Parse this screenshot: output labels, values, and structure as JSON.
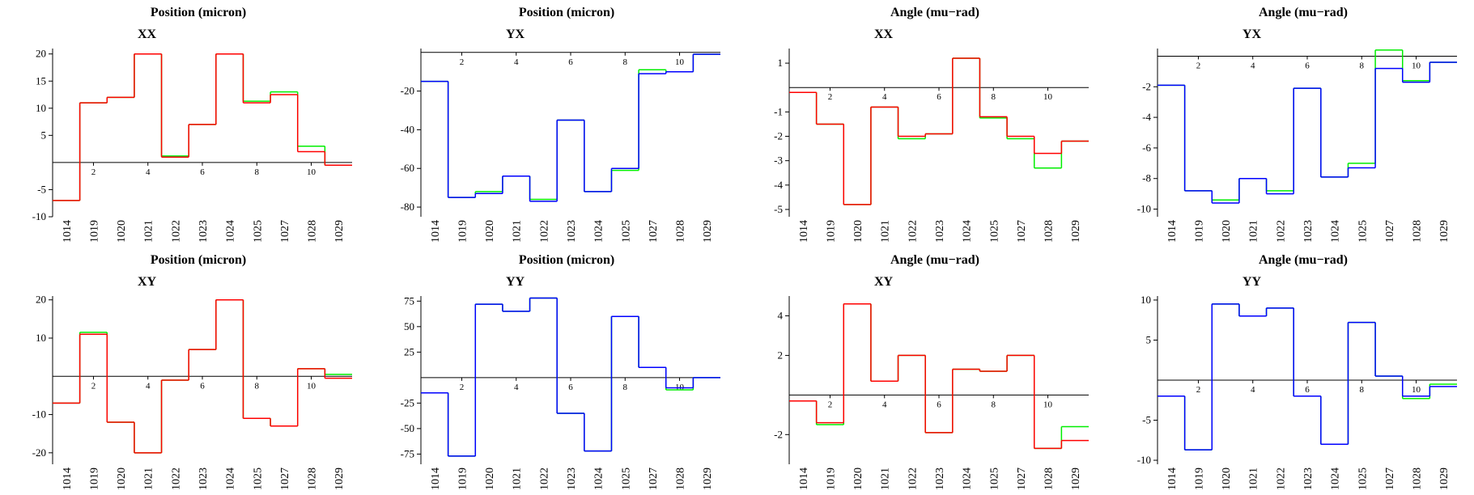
{
  "chart_data": [
    {
      "type": "step",
      "title": "Position (micron)",
      "subtitle": "XX",
      "categories": [
        "1014",
        "1019",
        "1020",
        "1021",
        "1022",
        "1023",
        "1024",
        "1025",
        "1027",
        "1028",
        "1029"
      ],
      "xlim": [
        0.5,
        11.5
      ],
      "xticks": [
        2,
        4,
        6,
        8,
        10
      ],
      "ylim": [
        -10,
        21
      ],
      "yticks": [
        -10,
        -5,
        5,
        10,
        15,
        20
      ],
      "series": [
        {
          "color": "#00ee00",
          "values": [
            -7,
            11,
            12,
            20,
            1.2,
            7,
            20,
            11.3,
            13,
            3,
            -0.5
          ]
        },
        {
          "color": "#ff0000",
          "values": [
            -7,
            11,
            12,
            20,
            1,
            7,
            20,
            11,
            12.5,
            2,
            -0.5
          ]
        }
      ]
    },
    {
      "type": "step",
      "title": "Position (micron)",
      "subtitle": "YX",
      "categories": [
        "1014",
        "1019",
        "1020",
        "1021",
        "1022",
        "1023",
        "1024",
        "1025",
        "1027",
        "1028",
        "1029"
      ],
      "xlim": [
        0.5,
        11.5
      ],
      "xticks": [
        2,
        4,
        6,
        8,
        10
      ],
      "ylim": [
        -85,
        2
      ],
      "yticks": [
        -20,
        -40,
        -60,
        -80
      ],
      "series": [
        {
          "color": "#00ee00",
          "values": [
            -15,
            -75,
            -72,
            -64,
            -76,
            -35,
            -72,
            -61,
            -9,
            -10,
            -1
          ]
        },
        {
          "color": "#0000ff",
          "values": [
            -15,
            -75,
            -73,
            -64,
            -77,
            -35,
            -72,
            -60,
            -11,
            -10,
            -1
          ]
        }
      ]
    },
    {
      "type": "step",
      "title": "Angle (mu−rad)",
      "subtitle": "XX",
      "categories": [
        "1014",
        "1019",
        "1020",
        "1021",
        "1022",
        "1023",
        "1024",
        "1025",
        "1027",
        "1028",
        "1029"
      ],
      "xlim": [
        0.5,
        11.5
      ],
      "xticks": [
        2,
        4,
        6,
        8,
        10
      ],
      "ylim": [
        -5.3,
        1.6
      ],
      "yticks": [
        1,
        -1,
        -2,
        -3,
        -4,
        -5
      ],
      "series": [
        {
          "color": "#00ee00",
          "values": [
            -0.2,
            -1.5,
            -4.8,
            -0.8,
            -2.1,
            -1.9,
            1.2,
            -1.25,
            -2.1,
            -3.3,
            -2.2
          ]
        },
        {
          "color": "#ff0000",
          "values": [
            -0.2,
            -1.5,
            -4.8,
            -0.8,
            -2,
            -1.9,
            1.2,
            -1.2,
            -2,
            -2.7,
            -2.2
          ]
        }
      ]
    },
    {
      "type": "step",
      "title": "Angle (mu−rad)",
      "subtitle": "YX",
      "categories": [
        "1014",
        "1019",
        "1020",
        "1021",
        "1022",
        "1023",
        "1024",
        "1025",
        "1027",
        "1028",
        "1029"
      ],
      "xlim": [
        0.5,
        11.5
      ],
      "xticks": [
        2,
        4,
        6,
        8,
        10
      ],
      "ylim": [
        -10.5,
        0.5
      ],
      "yticks": [
        -2,
        -4,
        -6,
        -8,
        -10
      ],
      "series": [
        {
          "color": "#00ee00",
          "values": [
            -1.9,
            -8.8,
            -9.4,
            -8,
            -8.8,
            -2.1,
            -7.9,
            -7,
            0.4,
            -1.6,
            -0.4
          ]
        },
        {
          "color": "#0000ff",
          "values": [
            -1.9,
            -8.8,
            -9.6,
            -8,
            -9,
            -2.1,
            -7.9,
            -7.3,
            -0.8,
            -1.7,
            -0.4
          ]
        }
      ]
    },
    {
      "type": "step",
      "title": "Position (micron)",
      "subtitle": "XY",
      "categories": [
        "1014",
        "1019",
        "1020",
        "1021",
        "1022",
        "1023",
        "1024",
        "1025",
        "1027",
        "1028",
        "1029"
      ],
      "xlim": [
        0.5,
        11.5
      ],
      "xticks": [
        2,
        4,
        6,
        8,
        10
      ],
      "ylim": [
        -23,
        21
      ],
      "yticks": [
        -20,
        -10,
        10,
        20
      ],
      "series": [
        {
          "color": "#00ee00",
          "values": [
            -7,
            11.5,
            -12,
            -20,
            -1,
            7,
            20,
            -11,
            -13,
            2,
            0.5
          ]
        },
        {
          "color": "#ff0000",
          "values": [
            -7,
            11,
            -12,
            -20,
            -1,
            7,
            20,
            -11,
            -13,
            2,
            -0.5
          ]
        }
      ]
    },
    {
      "type": "step",
      "title": "Position (micron)",
      "subtitle": "YY",
      "categories": [
        "1014",
        "1019",
        "1020",
        "1021",
        "1022",
        "1023",
        "1024",
        "1025",
        "1027",
        "1028",
        "1029"
      ],
      "xlim": [
        0.5,
        11.5
      ],
      "xticks": [
        2,
        4,
        6,
        8,
        10
      ],
      "ylim": [
        -85,
        80
      ],
      "yticks": [
        75,
        50,
        25,
        -25,
        -50,
        -75
      ],
      "series": [
        {
          "color": "#00ee00",
          "values": [
            -15,
            -77,
            72,
            65,
            78,
            -35,
            -72,
            60,
            10,
            -12,
            0
          ]
        },
        {
          "color": "#0000ff",
          "values": [
            -15,
            -77,
            72,
            65,
            78,
            -35,
            -72,
            60,
            10,
            -10,
            0
          ]
        }
      ]
    },
    {
      "type": "step",
      "title": "Angle (mu−rad)",
      "subtitle": "XY",
      "categories": [
        "1014",
        "1019",
        "1020",
        "1021",
        "1022",
        "1023",
        "1024",
        "1025",
        "1027",
        "1028",
        "1029"
      ],
      "xlim": [
        0.5,
        11.5
      ],
      "xticks": [
        2,
        4,
        6,
        8,
        10
      ],
      "ylim": [
        -3.5,
        5
      ],
      "yticks": [
        4,
        2,
        -2
      ],
      "series": [
        {
          "color": "#00ee00",
          "values": [
            -0.3,
            -1.5,
            4.6,
            0.7,
            2,
            -1.9,
            1.3,
            1.2,
            2,
            -2.7,
            -1.6
          ]
        },
        {
          "color": "#ff0000",
          "values": [
            -0.3,
            -1.4,
            4.6,
            0.7,
            2,
            -1.9,
            1.3,
            1.2,
            2,
            -2.7,
            -2.3
          ]
        }
      ]
    },
    {
      "type": "step",
      "title": "Angle (mu−rad)",
      "subtitle": "YY",
      "categories": [
        "1014",
        "1019",
        "1020",
        "1021",
        "1022",
        "1023",
        "1024",
        "1025",
        "1027",
        "1028",
        "1029"
      ],
      "xlim": [
        0.5,
        11.5
      ],
      "xticks": [
        2,
        4,
        6,
        8,
        10
      ],
      "ylim": [
        -10.5,
        10.5
      ],
      "yticks": [
        10,
        5,
        -5,
        -10
      ],
      "series": [
        {
          "color": "#00ee00",
          "values": [
            -2,
            -8.7,
            9.5,
            8,
            9,
            -2,
            -8,
            7.2,
            0.5,
            -2.3,
            -0.5
          ]
        },
        {
          "color": "#0000ff",
          "values": [
            -2,
            -8.7,
            9.5,
            8,
            9,
            -2,
            -8,
            7.2,
            0.5,
            -2,
            -0.8
          ]
        }
      ]
    }
  ]
}
